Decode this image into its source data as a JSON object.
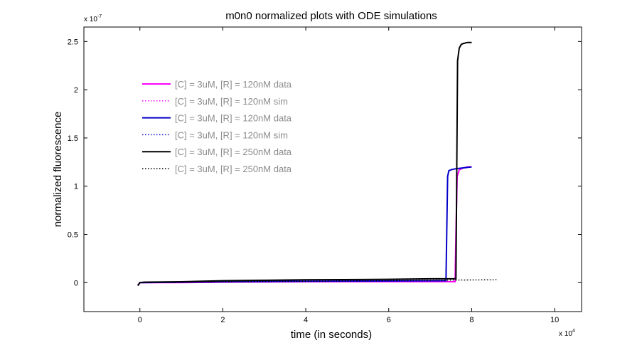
{
  "chart_data": {
    "type": "line",
    "title": "m0n0 normalized plots with ODE simulations",
    "xlabel": "time (in seconds)",
    "ylabel": "normalized fluorescence",
    "x_multiplier_label": "x 10",
    "x_multiplier_exp": "4",
    "y_multiplier_label": "x 10",
    "y_multiplier_exp": "-7",
    "xlim": [
      -1.35,
      10.65
    ],
    "ylim": [
      -0.3,
      2.65
    ],
    "xticks": [
      0,
      2,
      4,
      6,
      8,
      10
    ],
    "xtick_labels": [
      "0",
      "2",
      "4",
      "6",
      "8",
      "10"
    ],
    "yticks": [
      0,
      0.5,
      1,
      1.5,
      2,
      2.5
    ],
    "ytick_labels": [
      "0",
      "0.5",
      "1",
      "1.5",
      "2",
      "2.5"
    ],
    "grid": false,
    "legend_position": "upper-left",
    "series": [
      {
        "name": "[C] = 3uM, [R] = 120nM data",
        "color": "#ff00ff",
        "style": "solid",
        "x": [
          -0.05,
          0.0,
          0.1,
          1.0,
          2.0,
          4.0,
          6.0,
          7.55,
          7.6,
          7.62,
          7.65,
          7.7,
          7.8,
          7.9,
          8.0
        ],
        "y": [
          -0.03,
          0.0,
          0.0,
          0.0,
          0.005,
          0.01,
          0.01,
          0.01,
          0.01,
          0.5,
          1.1,
          1.17,
          1.19,
          1.2,
          1.2
        ]
      },
      {
        "name": "[C] = 3uM, [R] = 120nM sim",
        "color": "#ff00ff",
        "style": "dotted",
        "x": [
          0,
          2,
          4,
          6,
          7.5
        ],
        "y": [
          0,
          0.004,
          0.007,
          0.009,
          0.01
        ]
      },
      {
        "name": "[C] = 3uM, [R] = 120nM data",
        "color": "#0000c8",
        "style": "solid",
        "x": [
          -0.05,
          0.0,
          0.1,
          1.0,
          2.0,
          4.0,
          6.0,
          7.2,
          7.38,
          7.42,
          7.45,
          7.5,
          7.6,
          7.8,
          8.0
        ],
        "y": [
          -0.03,
          0.0,
          0.0,
          0.005,
          0.01,
          0.015,
          0.018,
          0.02,
          0.02,
          1.1,
          1.16,
          1.17,
          1.18,
          1.19,
          1.2
        ]
      },
      {
        "name": "[C] = 3uM, [R] = 120nM sim",
        "color": "#0000c8",
        "style": "dotted",
        "x": [
          0,
          2,
          4,
          6,
          7.3
        ],
        "y": [
          0,
          0.005,
          0.01,
          0.015,
          0.02
        ]
      },
      {
        "name": "[C] = 3uM, [R] = 250nM data",
        "color": "#000000",
        "style": "solid",
        "x": [
          -0.05,
          0.0,
          0.1,
          1.0,
          2.0,
          4.0,
          6.0,
          7.0,
          7.62,
          7.66,
          7.7,
          7.75,
          7.8,
          7.9,
          8.0
        ],
        "y": [
          -0.03,
          0.0,
          0.005,
          0.01,
          0.02,
          0.03,
          0.035,
          0.04,
          0.04,
          2.3,
          2.43,
          2.47,
          2.48,
          2.49,
          2.49
        ]
      },
      {
        "name": "[C] = 3uM, [R] = 250nM data",
        "color": "#000000",
        "style": "dotted",
        "x": [
          0,
          2,
          4,
          6,
          7.5,
          8.0,
          8.6
        ],
        "y": [
          0,
          0.008,
          0.015,
          0.022,
          0.026,
          0.028,
          0.03
        ]
      }
    ]
  }
}
